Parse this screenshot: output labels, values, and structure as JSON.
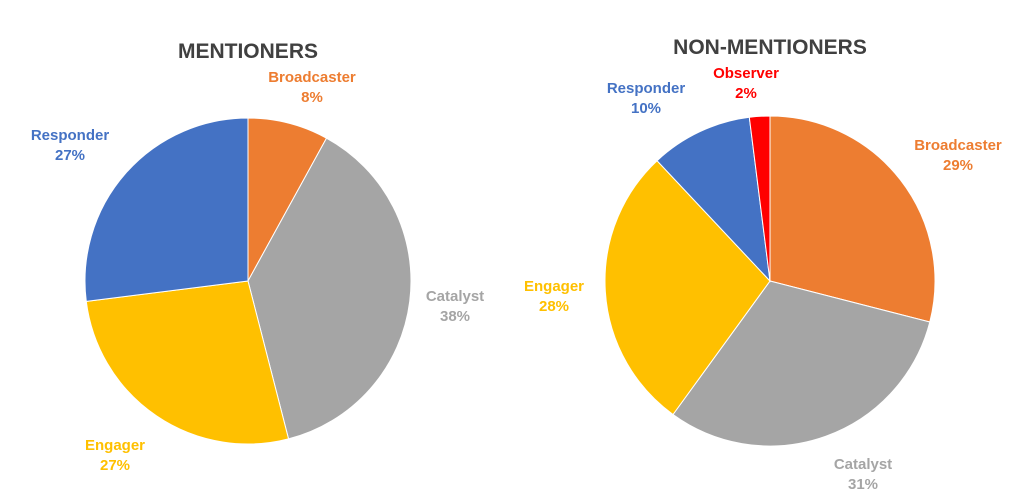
{
  "chart_data": [
    {
      "type": "pie",
      "title": "MENTIONERS",
      "legend": "none",
      "slices": [
        {
          "label": "Broadcaster",
          "value": 8,
          "value_label": "8%",
          "color": "#ED7D31"
        },
        {
          "label": "Catalyst",
          "value": 38,
          "value_label": "38%",
          "color": "#A5A5A5"
        },
        {
          "label": "Engager",
          "value": 27,
          "value_label": "27%",
          "color": "#FFC000"
        },
        {
          "label": "Responder",
          "value": 27,
          "value_label": "27%",
          "color": "#4472C4"
        }
      ]
    },
    {
      "type": "pie",
      "title": "NON-MENTIONERS",
      "legend": "none",
      "slices": [
        {
          "label": "Broadcaster",
          "value": 29,
          "value_label": "29%",
          "color": "#ED7D31"
        },
        {
          "label": "Catalyst",
          "value": 31,
          "value_label": "31%",
          "color": "#A5A5A5"
        },
        {
          "label": "Engager",
          "value": 28,
          "value_label": "28%",
          "color": "#FFC000"
        },
        {
          "label": "Responder",
          "value": 10,
          "value_label": "10%",
          "color": "#4472C4"
        },
        {
          "label": "Observer",
          "value": 2,
          "value_label": "2%",
          "color": "#FF0000"
        }
      ]
    }
  ]
}
